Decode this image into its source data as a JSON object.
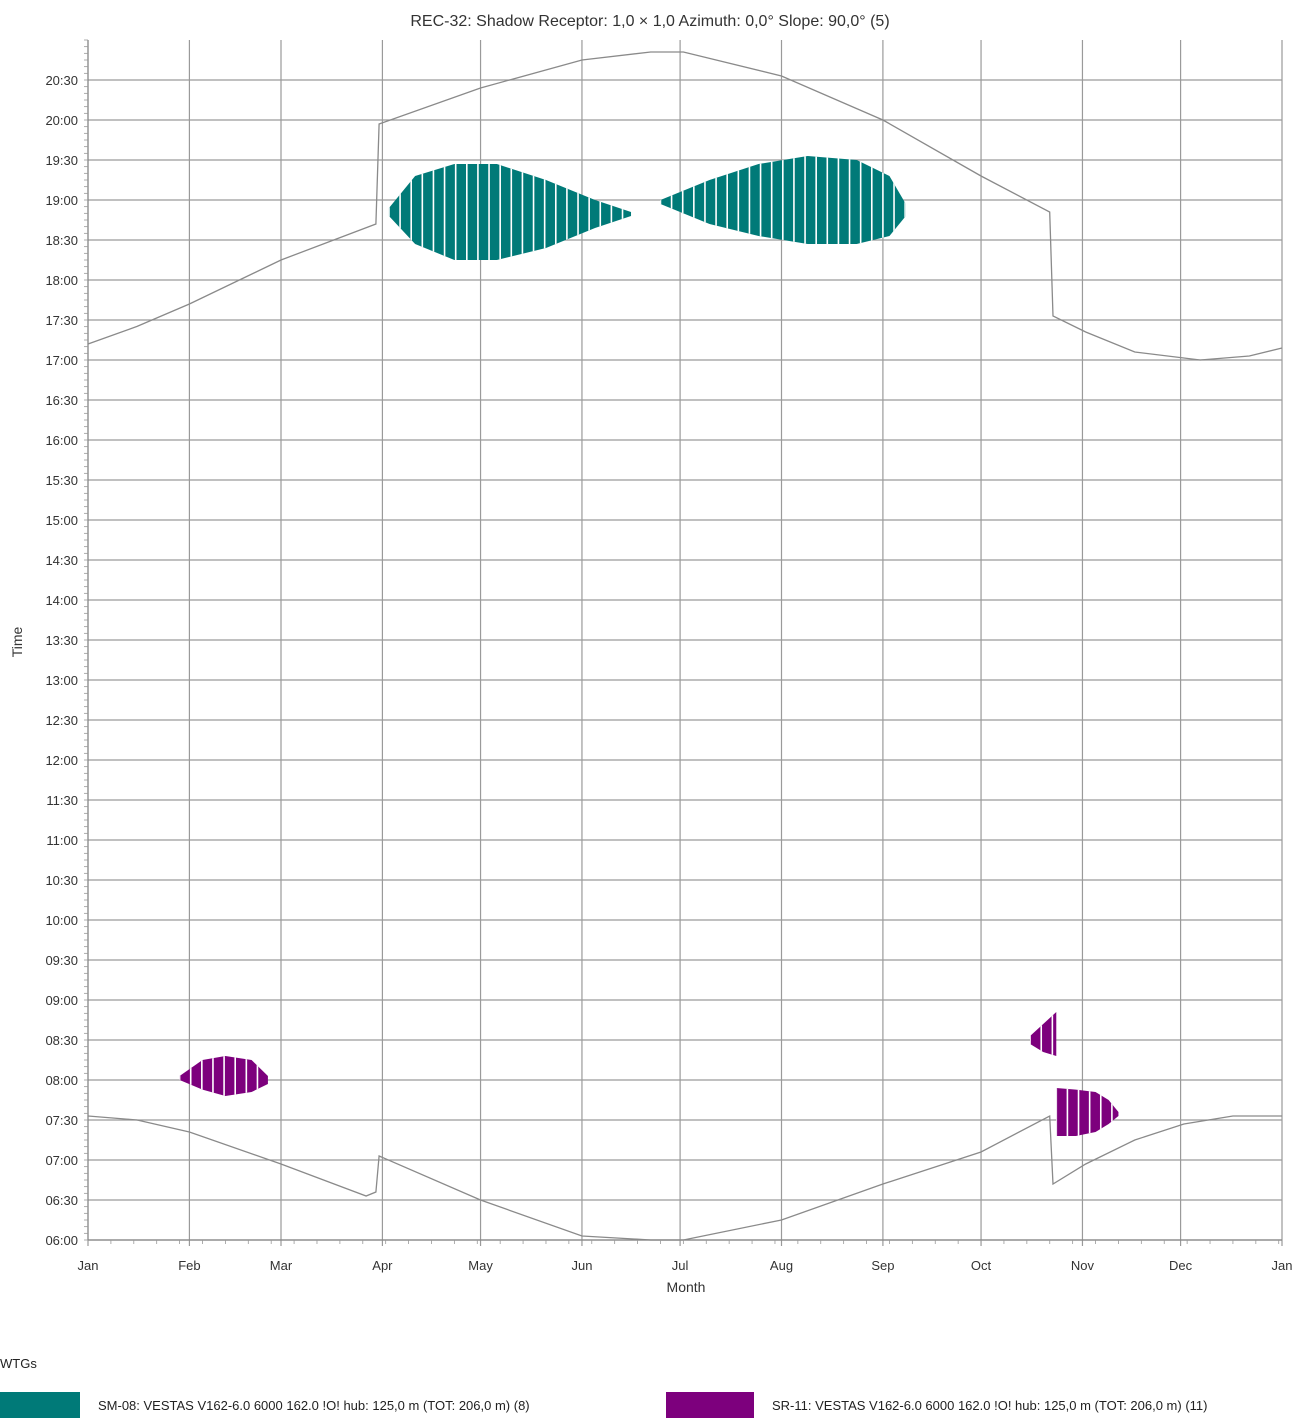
{
  "chart_data": {
    "type": "scatter",
    "title": "REC-32: Shadow Receptor: 1,0 × 1,0  Azimuth: 0,0°  Slope: 90,0° (5)",
    "xlabel": "Month",
    "ylabel": "Time",
    "x_ticks": [
      "Jan",
      "Feb",
      "Mar",
      "Apr",
      "May",
      "Jun",
      "Jul",
      "Aug",
      "Sep",
      "Oct",
      "Nov",
      "Dec",
      "Jan"
    ],
    "y_ticks": [
      "06:00",
      "06:30",
      "07:00",
      "07:30",
      "08:00",
      "08:30",
      "09:00",
      "09:30",
      "10:00",
      "10:30",
      "11:00",
      "11:30",
      "12:00",
      "12:30",
      "13:00",
      "13:30",
      "14:00",
      "14:30",
      "15:00",
      "15:30",
      "16:00",
      "16:30",
      "17:00",
      "17:30",
      "18:00",
      "18:30",
      "19:00",
      "19:30",
      "20:00",
      "20:30"
    ],
    "x_range_days": [
      0,
      365
    ],
    "y_range_hours": [
      6.0,
      21.0
    ],
    "grid": true,
    "legend_title": "WTGs",
    "series": [
      {
        "name": "SM-08: VESTAS V162-6.0 6000 162.0 !O! hub: 125,0 m (TOT: 206,0 m) (8)",
        "color": "#007a78",
        "regions": [
          {
            "day_start": 92,
            "day_end": 166,
            "center_time": 18.85,
            "top": [
              [
                92,
                18.9
              ],
              [
                100,
                19.3
              ],
              [
                112,
                19.45
              ],
              [
                125,
                19.45
              ],
              [
                140,
                19.25
              ],
              [
                155,
                19.0
              ],
              [
                166,
                18.85
              ]
            ],
            "bottom": [
              [
                92,
                18.8
              ],
              [
                100,
                18.45
              ],
              [
                112,
                18.25
              ],
              [
                125,
                18.25
              ],
              [
                140,
                18.4
              ],
              [
                155,
                18.65
              ],
              [
                166,
                18.8
              ]
            ]
          },
          {
            "day_start": 175,
            "day_end": 250,
            "center_time": 18.95,
            "top": [
              [
                175,
                19.0
              ],
              [
                190,
                19.25
              ],
              [
                205,
                19.45
              ],
              [
                220,
                19.55
              ],
              [
                235,
                19.5
              ],
              [
                245,
                19.3
              ],
              [
                250,
                18.95
              ]
            ],
            "bottom": [
              [
                175,
                18.95
              ],
              [
                190,
                18.7
              ],
              [
                205,
                18.55
              ],
              [
                220,
                18.45
              ],
              [
                235,
                18.45
              ],
              [
                245,
                18.55
              ],
              [
                250,
                18.8
              ]
            ]
          }
        ]
      },
      {
        "name": "SR-11: VESTAS V162-6.0 6000 162.0 !O! hub: 125,0 m (TOT: 206,0 m) (11)",
        "color": "#7d007d",
        "regions": [
          {
            "day_start": 28,
            "day_end": 55,
            "top": [
              [
                28,
                8.05
              ],
              [
                35,
                8.25
              ],
              [
                42,
                8.3
              ],
              [
                50,
                8.25
              ],
              [
                55,
                8.05
              ]
            ],
            "bottom": [
              [
                28,
                8.0
              ],
              [
                35,
                7.88
              ],
              [
                42,
                7.8
              ],
              [
                50,
                7.85
              ],
              [
                55,
                7.95
              ]
            ]
          },
          {
            "day_start": 288,
            "day_end": 296,
            "top": [
              [
                288,
                8.55
              ],
              [
                292,
                8.7
              ],
              [
                296,
                8.85
              ]
            ],
            "bottom": [
              [
                288,
                8.45
              ],
              [
                292,
                8.35
              ],
              [
                296,
                8.3
              ]
            ]
          },
          {
            "day_start": 296,
            "day_end": 315,
            "top": [
              [
                296,
                7.9
              ],
              [
                302,
                7.88
              ],
              [
                308,
                7.85
              ],
              [
                312,
                7.75
              ],
              [
                315,
                7.6
              ]
            ],
            "bottom": [
              [
                296,
                7.3
              ],
              [
                302,
                7.3
              ],
              [
                308,
                7.35
              ],
              [
                312,
                7.45
              ],
              [
                315,
                7.55
              ]
            ]
          }
        ]
      }
    ],
    "sunset_curve": [
      [
        0,
        17.2
      ],
      [
        15,
        17.42
      ],
      [
        31,
        17.7
      ],
      [
        59,
        18.25
      ],
      [
        88,
        18.7
      ],
      [
        89,
        19.95
      ],
      [
        120,
        20.4
      ],
      [
        151,
        20.75
      ],
      [
        172,
        20.85
      ],
      [
        182,
        20.85
      ],
      [
        212,
        20.55
      ],
      [
        243,
        20.0
      ],
      [
        273,
        19.3
      ],
      [
        294,
        18.85
      ],
      [
        295,
        17.55
      ],
      [
        305,
        17.35
      ],
      [
        320,
        17.1
      ],
      [
        340,
        17.0
      ],
      [
        355,
        17.05
      ],
      [
        365,
        17.15
      ]
    ],
    "sunrise_curve": [
      [
        0,
        7.55
      ],
      [
        15,
        7.5
      ],
      [
        31,
        7.35
      ],
      [
        59,
        6.95
      ],
      [
        85,
        6.55
      ],
      [
        88,
        6.6
      ],
      [
        89,
        7.05
      ],
      [
        120,
        6.5
      ],
      [
        151,
        6.05
      ],
      [
        172,
        6.0
      ],
      [
        182,
        6.0
      ],
      [
        212,
        6.25
      ],
      [
        243,
        6.7
      ],
      [
        273,
        7.1
      ],
      [
        294,
        7.55
      ],
      [
        295,
        6.7
      ],
      [
        305,
        6.95
      ],
      [
        320,
        7.25
      ],
      [
        335,
        7.45
      ],
      [
        350,
        7.55
      ],
      [
        365,
        7.55
      ]
    ]
  }
}
